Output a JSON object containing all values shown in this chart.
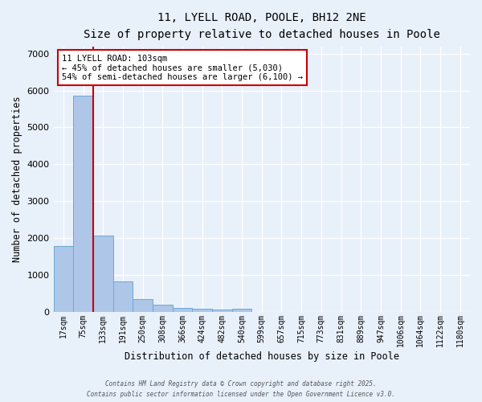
{
  "title1": "11, LYELL ROAD, POOLE, BH12 2NE",
  "title2": "Size of property relative to detached houses in Poole",
  "xlabel": "Distribution of detached houses by size in Poole",
  "ylabel": "Number of detached properties",
  "bar_values": [
    1780,
    5870,
    2070,
    830,
    340,
    180,
    100,
    75,
    55,
    75,
    0,
    0,
    0,
    0,
    0,
    0,
    0,
    0,
    0,
    0,
    0
  ],
  "categories": [
    "17sqm",
    "75sqm",
    "133sqm",
    "191sqm",
    "250sqm",
    "308sqm",
    "366sqm",
    "424sqm",
    "482sqm",
    "540sqm",
    "599sqm",
    "657sqm",
    "715sqm",
    "773sqm",
    "831sqm",
    "889sqm",
    "947sqm",
    "1006sqm",
    "1064sqm",
    "1122sqm",
    "1180sqm"
  ],
  "bar_color": "#aec6e8",
  "bar_edge_color": "#6aaad4",
  "background_color": "#e8f0fa",
  "grid_color": "#ffffff",
  "vline_x": 1.5,
  "vline_color": "#cc0000",
  "annotation_text": "11 LYELL ROAD: 103sqm\n← 45% of detached houses are smaller (5,030)\n54% of semi-detached houses are larger (6,100) →",
  "annotation_box_color": "#ffffff",
  "annotation_box_edge_color": "#cc0000",
  "ylim": [
    0,
    7200
  ],
  "yticks": [
    0,
    1000,
    2000,
    3000,
    4000,
    5000,
    6000,
    7000
  ],
  "footer1": "Contains HM Land Registry data © Crown copyright and database right 2025.",
  "footer2": "Contains public sector information licensed under the Open Government Licence v3.0."
}
